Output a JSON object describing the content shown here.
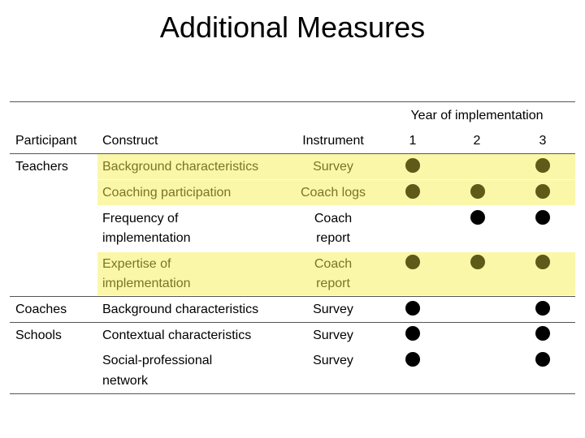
{
  "title": "Additional Measures",
  "colors": {
    "highlight": "#fbf7a9",
    "highlight_text": "#7a7426",
    "olive_dot": "#5e5a17"
  },
  "headers": {
    "year_group": "Year of implementation",
    "participant": "Participant",
    "construct": "Construct",
    "instrument": "Instrument",
    "y1": "1",
    "y2": "2",
    "y3": "3"
  },
  "rows": [
    {
      "participant": "Teachers",
      "construct": "Background characteristics",
      "instrument": "Survey",
      "highlight": true,
      "years": [
        true,
        false,
        true
      ]
    },
    {
      "participant": "",
      "construct": "Coaching participation",
      "instrument": "Coach logs",
      "highlight": true,
      "years": [
        true,
        true,
        true
      ]
    },
    {
      "participant": "",
      "construct_line1": "Frequency of",
      "construct_line2": "implementation",
      "instrument_line1": "Coach",
      "instrument_line2": "report",
      "highlight": false,
      "years": [
        false,
        true,
        true
      ]
    },
    {
      "participant": "",
      "construct_line1": "Expertise of",
      "construct_line2": "implementation",
      "instrument_line1": "Coach",
      "instrument_line2": "report",
      "highlight": true,
      "years": [
        true,
        true,
        true
      ]
    },
    {
      "participant": "Coaches",
      "construct": "Background characteristics",
      "instrument": "Survey",
      "highlight": false,
      "years": [
        true,
        false,
        true
      ]
    },
    {
      "participant": "Schools",
      "construct": "Contextual characteristics",
      "instrument": "Survey",
      "highlight": false,
      "years": [
        true,
        false,
        true
      ]
    },
    {
      "participant": "",
      "construct_line1": "Social-professional",
      "construct_line2": "network",
      "instrument": "Survey",
      "highlight": false,
      "years": [
        true,
        false,
        true
      ]
    }
  ]
}
